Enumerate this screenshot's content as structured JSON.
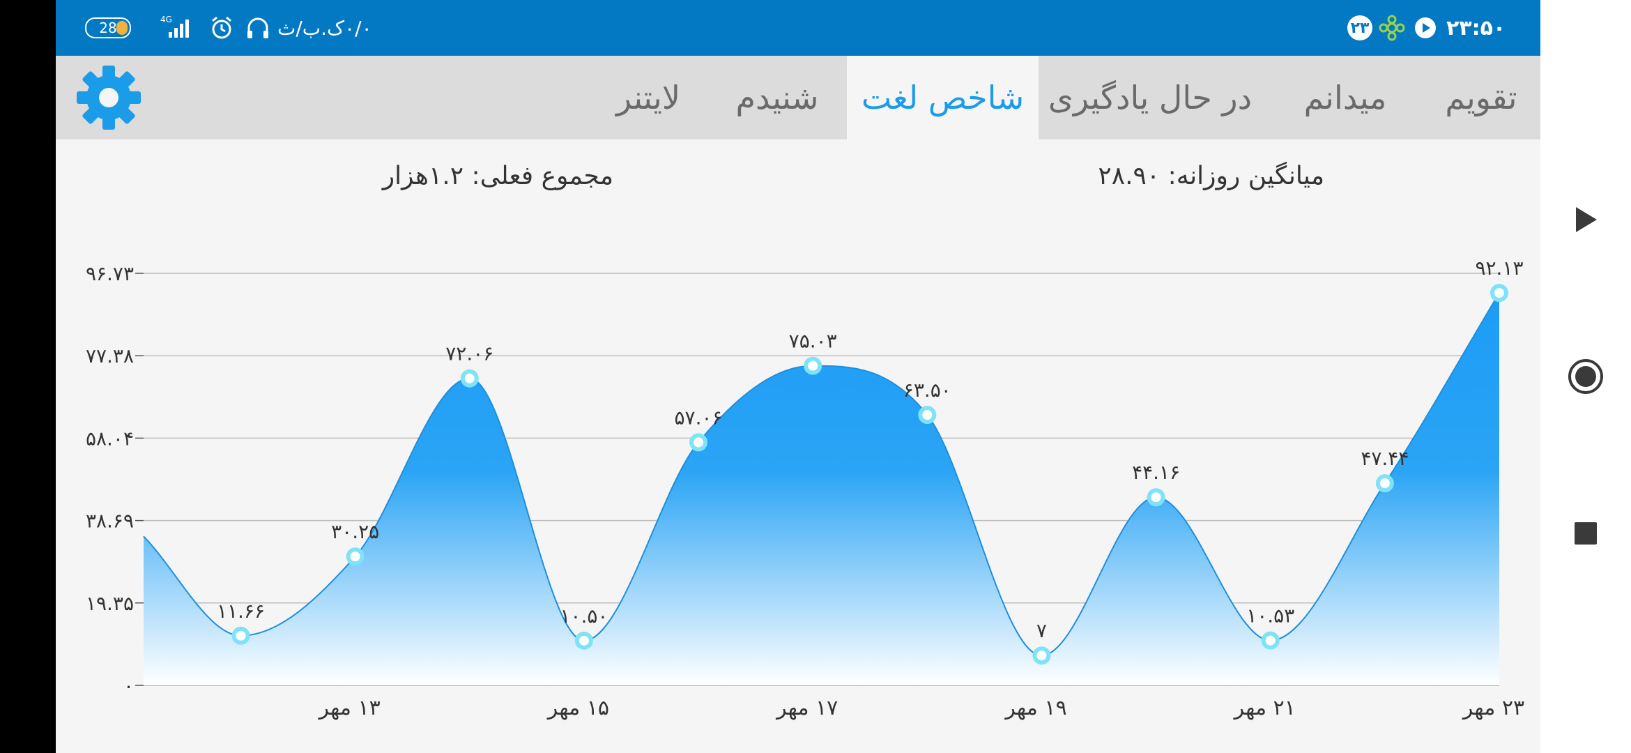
{
  "status_bar": {
    "time": "۲۳:۵۰",
    "notification_badge": "۲۳",
    "network_speed": "۰/۰ک.ب/ث",
    "battery": "28",
    "network_type": "4G"
  },
  "tabs": [
    {
      "label": "تقویم",
      "active": false
    },
    {
      "label": "میدانم",
      "active": false
    },
    {
      "label": "در حال یادگیری",
      "active": false
    },
    {
      "label": "شاخص لغت",
      "active": true
    },
    {
      "label": "شنیدم",
      "active": false
    },
    {
      "label": "لایتنر",
      "active": false
    }
  ],
  "summary": {
    "daily_average": "میانگین روزانه: ۲۸.۹۰",
    "current_total": "مجموع فعلی: ۱.۲هزار"
  },
  "colors": {
    "status_bar": "#0279c2",
    "accent": "#1b9ce8",
    "fill_top": "#1c9cf6",
    "fill_bottom": "#ffffff",
    "marker": "#7fe3f7",
    "tab_bar": "#dcdcdc"
  },
  "chart_data": {
    "type": "area",
    "smooth": true,
    "y_ticks": [
      "۰",
      "۱۹.۳۵",
      "۳۸.۶۹",
      "۵۸.۰۴",
      "۷۷.۳۸",
      "۹۶.۷۳"
    ],
    "y_tick_values": [
      0,
      19.35,
      38.69,
      58.04,
      77.38,
      96.73
    ],
    "ylim": [
      0,
      96.73
    ],
    "x_tick_labels": [
      "۱۳ مهر",
      "۱۵ مهر",
      "۱۷ مهر",
      "۱۹ مهر",
      "۲۱ مهر",
      "۲۳ مهر"
    ],
    "x_tick_positions": [
      2,
      4,
      6,
      8,
      10,
      12
    ],
    "xlim": [
      0.15,
      12
    ],
    "grid": true,
    "lead_in": {
      "x": 0.15,
      "y": 35
    },
    "points": [
      {
        "x": 1,
        "y": 11.66,
        "label": "۱۱.۶۶"
      },
      {
        "x": 2,
        "y": 30.25,
        "label": "۳۰.۲۵"
      },
      {
        "x": 3,
        "y": 72.06,
        "label": "۷۲.۰۶"
      },
      {
        "x": 4,
        "y": 10.5,
        "label": "۱۰.۵۰"
      },
      {
        "x": 5,
        "y": 57.06,
        "label": "۵۷.۰۶"
      },
      {
        "x": 6,
        "y": 75.03,
        "label": "۷۵.۰۳"
      },
      {
        "x": 7,
        "y": 63.5,
        "label": "۶۳.۵۰"
      },
      {
        "x": 8,
        "y": 7,
        "label": "۷"
      },
      {
        "x": 9,
        "y": 44.16,
        "label": "۴۴.۱۶"
      },
      {
        "x": 10,
        "y": 10.53,
        "label": "۱۰.۵۳"
      },
      {
        "x": 11,
        "y": 47.44,
        "label": "۴۷.۴۴"
      },
      {
        "x": 12,
        "y": 92.13,
        "label": "۹۲.۱۳"
      }
    ]
  },
  "nav_bar": {
    "icons": [
      "play-triangle-icon",
      "record-circle-icon",
      "stop-square-icon"
    ]
  }
}
